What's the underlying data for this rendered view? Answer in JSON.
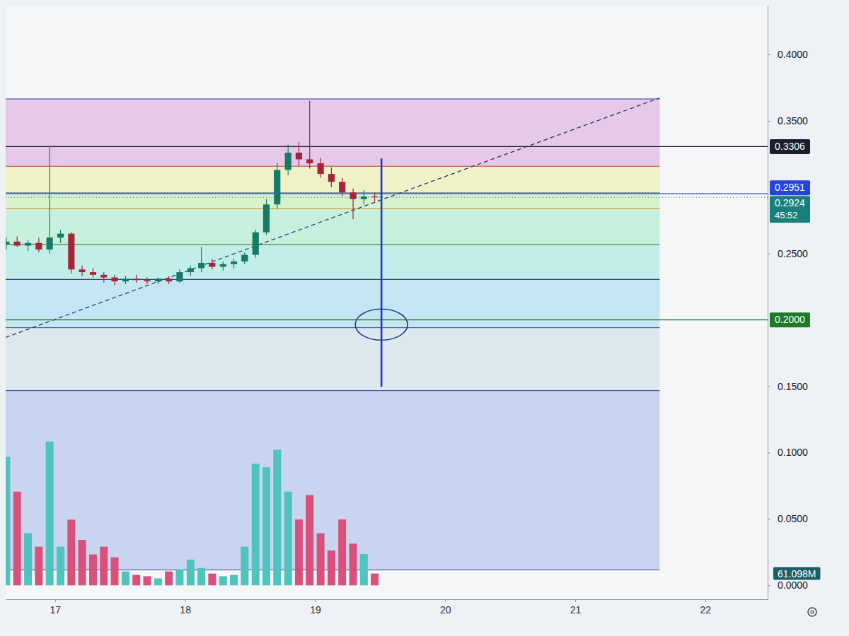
{
  "chart_data": {
    "type": "candlestick",
    "x": [
      16.625,
      16.708,
      16.792,
      16.875,
      16.958,
      17.042,
      17.125,
      17.208,
      17.292,
      17.375,
      17.458,
      17.542,
      17.625,
      17.708,
      17.792,
      17.875,
      17.958,
      18.042,
      18.125,
      18.208,
      18.292,
      18.375,
      18.458,
      18.542,
      18.625,
      18.708,
      18.792,
      18.875,
      18.958,
      19.042,
      19.125,
      19.208,
      19.292,
      19.375,
      19.458
    ],
    "xlim": [
      16.62,
      22.48
    ],
    "xticks": [
      17,
      18,
      19,
      20,
      21,
      22
    ],
    "ylim": [
      -0.0105,
      0.4368
    ],
    "yticks": [
      {
        "value": 0,
        "label": "0.0000"
      },
      {
        "value": 0.05,
        "label": "0.0500"
      },
      {
        "value": 0.1,
        "label": "0.1000"
      },
      {
        "value": 0.15,
        "label": "0.1500"
      },
      {
        "value": 0.25,
        "label": "0.2500"
      },
      {
        "value": 0.35,
        "label": "0.3500"
      },
      {
        "value": 0.4,
        "label": "0.4000"
      }
    ],
    "y2lim": [
      -72,
      3000
    ],
    "y2ticks": [
      {
        "value": 61.098,
        "label": "61.098M"
      }
    ],
    "grid": false,
    "series": [
      {
        "type": "candlestick",
        "open": [
          0.257,
          0.259,
          0.256,
          0.258,
          0.253,
          0.262,
          0.265,
          0.238,
          0.236,
          0.234,
          0.232,
          0.229,
          0.231,
          0.23,
          0.229,
          0.231,
          0.229,
          0.236,
          0.239,
          0.243,
          0.24,
          0.242,
          0.244,
          0.249,
          0.266,
          0.287,
          0.313,
          0.326,
          0.321,
          0.318,
          0.31,
          0.304,
          0.296,
          0.291,
          0.293
        ],
        "high": [
          0.262,
          0.263,
          0.26,
          0.262,
          0.331,
          0.268,
          0.266,
          0.241,
          0.239,
          0.236,
          0.234,
          0.233,
          0.234,
          0.232,
          0.232,
          0.233,
          0.238,
          0.241,
          0.255,
          0.246,
          0.244,
          0.246,
          0.251,
          0.268,
          0.291,
          0.318,
          0.332,
          0.334,
          0.365,
          0.322,
          0.315,
          0.307,
          0.299,
          0.298,
          0.296
        ],
        "low": [
          0.253,
          0.255,
          0.252,
          0.251,
          0.25,
          0.258,
          0.235,
          0.233,
          0.232,
          0.228,
          0.226,
          0.227,
          0.228,
          0.227,
          0.227,
          0.227,
          0.228,
          0.233,
          0.236,
          0.238,
          0.237,
          0.239,
          0.242,
          0.247,
          0.264,
          0.284,
          0.309,
          0.316,
          0.314,
          0.307,
          0.3,
          0.293,
          0.276,
          0.287,
          0.289
        ],
        "close": [
          0.259,
          0.256,
          0.258,
          0.253,
          0.262,
          0.265,
          0.238,
          0.236,
          0.234,
          0.232,
          0.229,
          0.231,
          0.23,
          0.229,
          0.231,
          0.229,
          0.236,
          0.239,
          0.243,
          0.24,
          0.242,
          0.244,
          0.249,
          0.266,
          0.287,
          0.313,
          0.326,
          0.321,
          0.318,
          0.31,
          0.304,
          0.296,
          0.291,
          0.293,
          0.2924
        ],
        "colors": [
          "#167a68",
          "#a8243a",
          "#167a68",
          "#a8243a",
          "#167a68",
          "#167a68",
          "#a8243a",
          "#a8243a",
          "#a8243a",
          "#a8243a",
          "#a8243a",
          "#167a68",
          "#a8243a",
          "#a8243a",
          "#167a68",
          "#a8243a",
          "#167a68",
          "#167a68",
          "#167a68",
          "#a8243a",
          "#167a68",
          "#167a68",
          "#167a68",
          "#167a68",
          "#167a68",
          "#167a68",
          "#167a68",
          "#a8243a",
          "#a8243a",
          "#a8243a",
          "#a8243a",
          "#a8243a",
          "#a8243a",
          "#167a68",
          "#a8243a"
        ]
      },
      {
        "type": "bar",
        "axis": "y2",
        "values": [
          665,
          485,
          270,
          200,
          744,
          200,
          340,
          235,
          160,
          200,
          145,
          72,
          54,
          47,
          36,
          72,
          83,
          133,
          90,
          61,
          47,
          54,
          200,
          629,
          611,
          701,
          485,
          341,
          467,
          270,
          180,
          341,
          216,
          162,
          61.098
        ],
        "colors": [
          "#4fc3bd",
          "#d9507a",
          "#4fc3bd",
          "#d9507a",
          "#4fc3bd",
          "#4fc3bd",
          "#d9507a",
          "#d9507a",
          "#d9507a",
          "#d9507a",
          "#d9507a",
          "#4fc3bd",
          "#d9507a",
          "#d9507a",
          "#4fc3bd",
          "#d9507a",
          "#4fc3bd",
          "#4fc3bd",
          "#4fc3bd",
          "#d9507a",
          "#4fc3bd",
          "#4fc3bd",
          "#4fc3bd",
          "#4fc3bd",
          "#4fc3bd",
          "#4fc3bd",
          "#4fc3bd",
          "#d9507a",
          "#d9507a",
          "#d9507a",
          "#d9507a",
          "#d9507a",
          "#d9507a",
          "#4fc3bd",
          "#d9507a"
        ]
      }
    ],
    "levels": [
      {
        "value": 0.3306,
        "label": "0.3306",
        "color": "#1c1f2b"
      },
      {
        "value": 0.2951,
        "label": "0.2951",
        "color": "#2443e0"
      },
      {
        "value": 0.2,
        "label": "0.2000",
        "color": "#1f7a2a"
      }
    ],
    "last_price": {
      "value": 0.2924,
      "label": "0.2924",
      "countdown": "45:52",
      "color": "#17807c"
    },
    "fib": {
      "x": [
        16.62,
        21.65
      ],
      "levels": [
        {
          "value": 0.3665,
          "color": "#2b3f9e"
        },
        {
          "value": 0.3158,
          "color": "#c0392b"
        },
        {
          "value": 0.2958,
          "color": "#6b7f8c"
        },
        {
          "value": 0.2837,
          "color": "#d4882a"
        },
        {
          "value": 0.2568,
          "color": "#3d8b3d"
        },
        {
          "value": 0.2305,
          "color": "#2f4f6f"
        },
        {
          "value": 0.1942,
          "color": "#3a6fb0"
        },
        {
          "value": 0.1468,
          "color": "#3a5a9a"
        },
        {
          "value": 0.0116,
          "color": "#3a4a9a"
        }
      ],
      "bands": [
        {
          "color": "#e6c8e8"
        },
        {
          "color": "#eef2c6"
        },
        {
          "color": "#d6f2cc"
        },
        {
          "color": "#c6f0dc"
        },
        {
          "color": "#c2eeea"
        },
        {
          "color": "#c4e6f2"
        },
        {
          "color": "#dce8ee"
        },
        {
          "color": "#c8d4f0"
        }
      ]
    },
    "trend_line": {
      "x": [
        16.62,
        21.65
      ],
      "y": [
        0.1868,
        0.3673
      ],
      "color": "#2a3a7a",
      "line_style": "dashed"
    },
    "vertical_line": {
      "x": 19.51,
      "y": [
        0.1495,
        0.3216
      ],
      "color": "#2c35c9"
    },
    "ellipse": {
      "x": 19.51,
      "y": 0.1965,
      "color": "#1f3d8c"
    }
  }
}
